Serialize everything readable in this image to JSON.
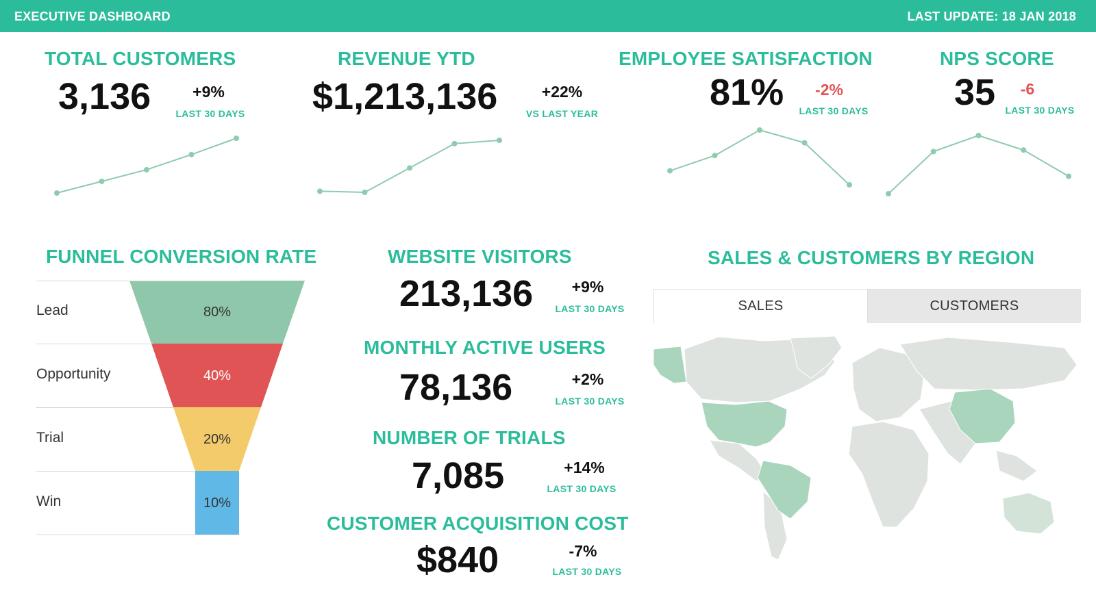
{
  "header": {
    "title": "EXECUTIVE DASHBOARD",
    "last_update": "LAST UPDATE: 18 JAN 2018"
  },
  "kpis": {
    "total_customers": {
      "title": "TOTAL CUSTOMERS",
      "value": "3,136",
      "delta": "+9%",
      "period": "LAST 30 DAYS",
      "trend": [
        1,
        2,
        3,
        4.3,
        5.7
      ]
    },
    "revenue_ytd": {
      "title": "REVENUE YTD",
      "value": "$1,213,136",
      "delta": "+22%",
      "period": "VS LAST YEAR",
      "trend": [
        1.1,
        1.0,
        3.2,
        5.4,
        5.7
      ]
    },
    "employee_satisfaction": {
      "title": "EMPLOYEE SATISFACTION",
      "value": "81%",
      "delta": "-2%",
      "period": "LAST 30 DAYS",
      "trend": [
        2.1,
        3.3,
        5.3,
        4.3,
        1.0
      ]
    },
    "nps_score": {
      "title": "NPS SCORE",
      "value": "35",
      "delta": "-6",
      "period": "LAST 30 DAYS",
      "trend": [
        1.0,
        3.9,
        5.0,
        4.0,
        2.2
      ]
    }
  },
  "funnel": {
    "title": "FUNNEL CONVERSION RATE",
    "stages": [
      {
        "label": "Lead",
        "value": "80%",
        "color": "#8fc7aa"
      },
      {
        "label": "Opportunity",
        "value": "40%",
        "color": "#e05455"
      },
      {
        "label": "Trial",
        "value": "20%",
        "color": "#f3cb6b"
      },
      {
        "label": "Win",
        "value": "10%",
        "color": "#5fb8e6"
      }
    ]
  },
  "metrics": {
    "website_visitors": {
      "title": "WEBSITE VISITORS",
      "value": "213,136",
      "delta": "+9%",
      "period": "LAST 30 DAYS"
    },
    "monthly_active_users": {
      "title": "MONTHLY ACTIVE USERS",
      "value": "78,136",
      "delta": "+2%",
      "period": "LAST 30 DAYS"
    },
    "number_of_trials": {
      "title": "NUMBER OF TRIALS",
      "value": "7,085",
      "delta": "+14%",
      "period": "LAST 30 DAYS"
    },
    "customer_acquisition_cost": {
      "title": "CUSTOMER ACQUISITION COST",
      "value": "$840",
      "delta": "-7%",
      "period": "LAST 30 DAYS"
    }
  },
  "region": {
    "title": "SALES & CUSTOMERS BY REGION",
    "tabs": [
      "SALES",
      "CUSTOMERS"
    ],
    "active_tab": "SALES",
    "highlighted_regions": [
      "Alaska",
      "United States",
      "Brazil",
      "China",
      "Australia"
    ],
    "colors": {
      "highlight": "#a8d5bc",
      "base": "#dfe3df"
    }
  },
  "colors": {
    "accent": "#2bbd9b",
    "negative": "#e05454",
    "spark": "#8fcbae"
  }
}
